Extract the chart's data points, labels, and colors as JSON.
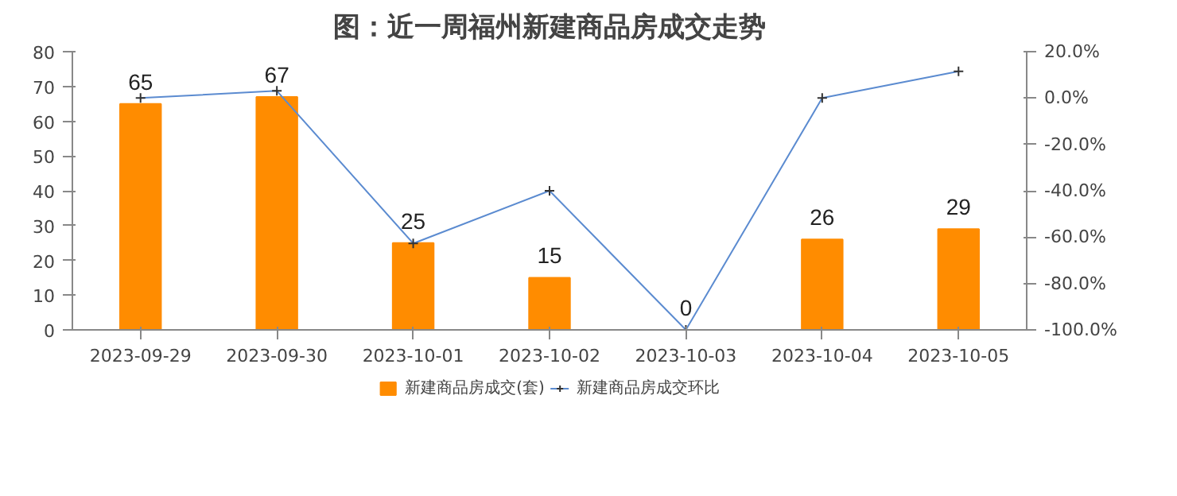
{
  "chart_data": {
    "type": "bar",
    "title": "图：近一周福州新建商品房成交走势",
    "categories": [
      "2023-09-29",
      "2023-09-30",
      "2023-10-01",
      "2023-10-02",
      "2023-10-03",
      "2023-10-04",
      "2023-10-05"
    ],
    "series": [
      {
        "name": "新建商品房成交(套)",
        "color": "#ff8c00",
        "values": [
          65,
          67,
          25,
          15,
          0,
          26,
          29
        ],
        "data_labels": true
      },
      {
        "name": "新建商品房成交环比",
        "type": "line",
        "axis": "y2",
        "color": "#5b8bd0",
        "marker": "cross",
        "line_style": "solid",
        "values": [
          0,
          3.1,
          -62.7,
          -40,
          -100,
          0,
          11.5
        ]
      }
    ],
    "ylim": [
      0,
      80
    ],
    "yticks": [
      0,
      10,
      20,
      30,
      40,
      50,
      60,
      70,
      80
    ],
    "y2lim": [
      -100,
      20
    ],
    "y2ticks": [
      {
        "value": -100,
        "label": "-100.0%"
      },
      {
        "value": -80,
        "label": "-80.0%"
      },
      {
        "value": -60,
        "label": "-60.0%"
      },
      {
        "value": -40,
        "label": "-40.0%"
      },
      {
        "value": -20,
        "label": "-20.0%"
      },
      {
        "value": 0,
        "label": "0.0%"
      },
      {
        "value": 20,
        "label": "20.0%"
      }
    ],
    "grid": false,
    "legend": "bottom"
  }
}
